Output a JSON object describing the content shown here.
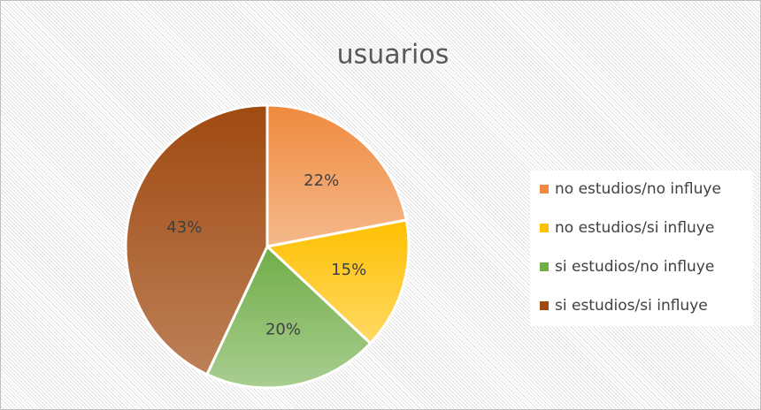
{
  "chart_data": {
    "type": "pie",
    "title": "usuarios",
    "categories": [
      "no estudios/no influye",
      "no estudios/si influye",
      "si estudios/no influye",
      "si estudios/si influye"
    ],
    "values": [
      22,
      15,
      20,
      43
    ],
    "value_labels": [
      "22%",
      "15%",
      "20%",
      "43%"
    ],
    "colors": [
      "#ef8a3e",
      "#ffc000",
      "#70ad47",
      "#a04a10"
    ],
    "legend": "right"
  }
}
